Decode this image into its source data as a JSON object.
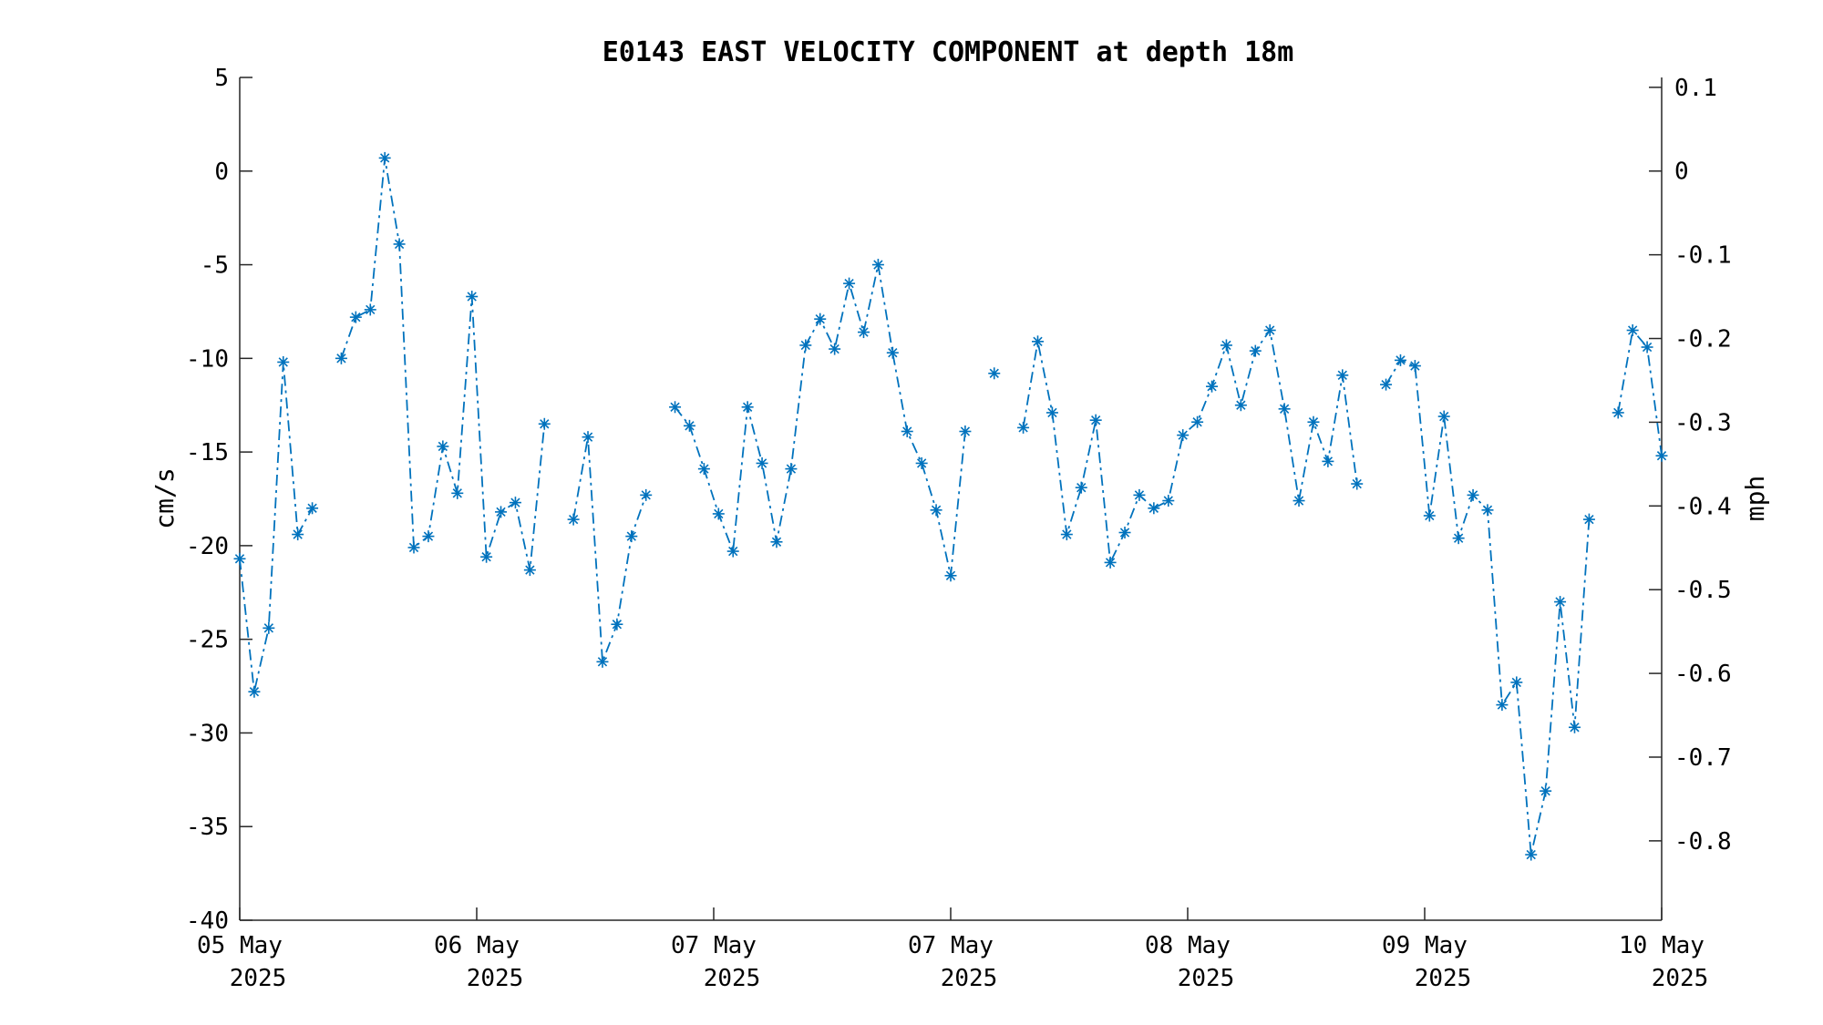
{
  "chart_data": {
    "type": "line",
    "title": "E0143 EAST VELOCITY COMPONENT at depth 18m",
    "ylabel": "cm/s",
    "y2label": "mph",
    "ylim": [
      -40,
      5
    ],
    "y2lim": [
      -0.8948,
      0.1118
    ],
    "yticks": [
      5,
      0,
      -5,
      -10,
      -15,
      -20,
      -25,
      -30,
      -35,
      -40
    ],
    "y2ticks": [
      "0.1",
      "0",
      "-0.1",
      "-0.2",
      "-0.3",
      "-0.4",
      "-0.5",
      "-0.6",
      "-0.7",
      "-0.8"
    ],
    "xlim_days": [
      0,
      6
    ],
    "xticks": [
      {
        "day": "05 May",
        "year": "2025"
      },
      {
        "day": "06 May",
        "year": "2025"
      },
      {
        "day": "07 May",
        "year": "2025"
      },
      {
        "day": "07 May",
        "year": "2025"
      },
      {
        "day": "08 May",
        "year": "2025"
      },
      {
        "day": "09 May",
        "year": "2025"
      },
      {
        "day": "10 May",
        "year": "2025"
      }
    ],
    "grid": false,
    "line_style": "dash-dot with asterisk markers",
    "color": "#0072BD",
    "series": [
      {
        "values": [
          -20.7,
          -27.8,
          -24.4,
          -10.2,
          -19.4,
          -18.0,
          null,
          -10.0,
          -7.8,
          -7.4,
          0.7,
          -3.9,
          -20.1,
          -19.5,
          -14.7,
          -17.2,
          -6.7,
          -20.6,
          -18.2,
          -17.7,
          -21.3,
          -13.5,
          null,
          -18.6,
          -14.2,
          -26.2,
          -24.2,
          -19.5,
          -17.3,
          null,
          -12.6,
          -13.6,
          -15.9,
          -18.3,
          -20.3,
          -12.6,
          -15.6,
          -19.8,
          -15.9,
          -9.3,
          -7.9,
          -9.5,
          -6.0,
          -8.6,
          -5.0,
          -9.7,
          -13.9,
          -15.6,
          -18.1,
          -21.6,
          -13.9,
          null,
          -10.8,
          null,
          -13.7,
          -9.1,
          -12.9,
          -19.4,
          -16.9,
          -13.3,
          -20.9,
          -19.3,
          -17.3,
          -18.0,
          -17.6,
          -14.1,
          -13.4,
          -11.5,
          -9.3,
          -12.5,
          -9.6,
          -8.5,
          -12.7,
          -17.6,
          -13.4,
          -15.5,
          -10.9,
          -16.7,
          null,
          -11.4,
          -10.1,
          -10.4,
          -18.4,
          -13.1,
          -19.6,
          -17.3,
          -18.1,
          -28.5,
          -27.3,
          -36.5,
          -33.1,
          -23.0,
          -29.7,
          -18.6,
          null,
          -12.9,
          -8.5,
          -9.4,
          -15.2
        ]
      }
    ]
  }
}
